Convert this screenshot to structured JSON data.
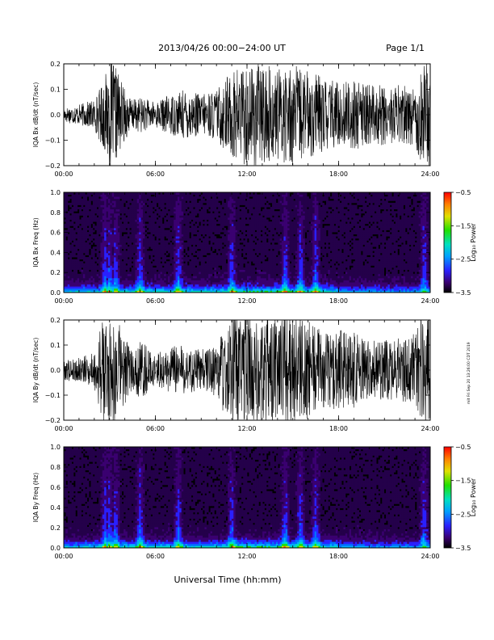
{
  "header": {
    "title": "2013/04/26  00:00−24:00 UT",
    "page_label": "Page 1/1"
  },
  "xaxis_title": "Universal Time (hh:mm)",
  "side_stamp": "mit Fri Sep 20 13:26:00 CDT 2019",
  "chart_data": [
    {
      "type": "line",
      "panel": "bx-time-series",
      "ylabel": "IQA Bx dB/dt (nT/sec)",
      "xlim": [
        "00:00",
        "24:00"
      ],
      "ylim": [
        -0.2,
        0.2
      ],
      "x_ticks": [
        "00:00",
        "06:00",
        "12:00",
        "18:00",
        "24:00"
      ],
      "y_ticks": [
        "−0.2",
        "−0.1",
        "0.0",
        "0.1",
        "0.2"
      ],
      "series": [
        {
          "color": "#000000",
          "amplitude_envelope": {
            "x_hours": [
              0,
              1,
              2,
              2.7,
              3.0,
              3.5,
              4.0,
              4.5,
              5.0,
              6.0,
              7.0,
              8.0,
              9.0,
              10.0,
              11.0,
              12.0,
              13.0,
              14.0,
              15.0,
              16.0,
              17.0,
              18.0,
              19.0,
              20.0,
              21.0,
              22.0,
              23.0,
              23.5,
              24.0
            ],
            "y_amplitude": [
              0.03,
              0.04,
              0.06,
              0.15,
              0.22,
              0.18,
              0.1,
              0.06,
              0.07,
              0.05,
              0.08,
              0.1,
              0.08,
              0.1,
              0.18,
              0.2,
              0.2,
              0.18,
              0.2,
              0.17,
              0.15,
              0.13,
              0.14,
              0.12,
              0.12,
              0.12,
              0.12,
              0.22,
              0.22
            ]
          }
        }
      ]
    },
    {
      "type": "heatmap",
      "panel": "bx-spectrogram",
      "ylabel": "IQA Bx Freq (Hz)",
      "xlim": [
        "00:00",
        "24:00"
      ],
      "ylim": [
        0.0,
        1.0
      ],
      "x_ticks": [
        "00:00",
        "06:00",
        "12:00",
        "18:00",
        "24:00"
      ],
      "y_ticks": [
        "0.0",
        "0.2",
        "0.4",
        "0.6",
        "0.8",
        "1.0"
      ],
      "colorbar": {
        "label": "Log₁₀ Power",
        "ticks": [
          "−0.5",
          "−1.5",
          "−2.5",
          "−3.5"
        ],
        "range": [
          -3.5,
          -0.5
        ]
      },
      "activity_bands_hours": [
        2.7,
        3.0,
        3.4,
        5.0,
        7.5,
        11.0,
        14.5,
        15.5,
        16.5,
        23.6
      ]
    },
    {
      "type": "line",
      "panel": "by-time-series",
      "ylabel": "IQA By dB/dt (nT/sec)",
      "xlim": [
        "00:00",
        "24:00"
      ],
      "ylim": [
        -0.2,
        0.2
      ],
      "x_ticks": [
        "00:00",
        "06:00",
        "12:00",
        "18:00",
        "24:00"
      ],
      "y_ticks": [
        "−0.2",
        "−0.1",
        "0.0",
        "0.1",
        "0.2"
      ],
      "series": [
        {
          "color": "#000000",
          "amplitude_envelope": {
            "x_hours": [
              0,
              1,
              2,
              2.5,
              3.0,
              3.5,
              4.0,
              4.5,
              5.0,
              6.0,
              7.0,
              8.0,
              9.0,
              10.0,
              11.0,
              12.0,
              13.0,
              14.0,
              15.0,
              16.0,
              17.0,
              18.0,
              19.0,
              20.0,
              21.0,
              22.0,
              23.0,
              23.5,
              24.0
            ],
            "y_amplitude": [
              0.04,
              0.05,
              0.07,
              0.2,
              0.22,
              0.2,
              0.14,
              0.08,
              0.12,
              0.06,
              0.1,
              0.1,
              0.08,
              0.12,
              0.22,
              0.22,
              0.22,
              0.22,
              0.22,
              0.2,
              0.15,
              0.16,
              0.15,
              0.12,
              0.12,
              0.13,
              0.15,
              0.22,
              0.22
            ]
          }
        }
      ]
    },
    {
      "type": "heatmap",
      "panel": "by-spectrogram",
      "ylabel": "IQA By Freq (Hz)",
      "xlim": [
        "00:00",
        "24:00"
      ],
      "ylim": [
        0.0,
        1.0
      ],
      "x_ticks": [
        "00:00",
        "06:00",
        "12:00",
        "18:00",
        "24:00"
      ],
      "y_ticks": [
        "0.0",
        "0.2",
        "0.4",
        "0.6",
        "0.8",
        "1.0"
      ],
      "colorbar": {
        "label": "Log₁₀ Power",
        "ticks": [
          "−0.5",
          "−1.5",
          "−2.5",
          "−3.5"
        ],
        "range": [
          -3.5,
          -0.5
        ]
      },
      "activity_bands_hours": [
        2.7,
        3.0,
        3.4,
        5.0,
        7.5,
        11.0,
        14.5,
        15.5,
        16.5,
        23.6
      ]
    }
  ]
}
